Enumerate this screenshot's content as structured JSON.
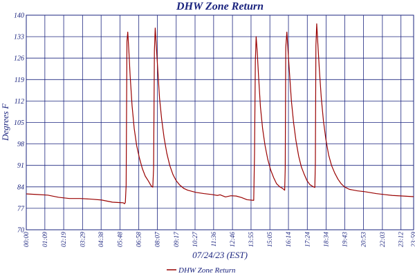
{
  "chart_data": {
    "type": "line",
    "title": "DHW Zone Return",
    "xlabel": "07/24/23 (EST)",
    "ylabel": "Degrees F",
    "ylim": [
      70,
      140
    ],
    "yticks": [
      70,
      77,
      84,
      91,
      98,
      105,
      112,
      119,
      126,
      133,
      140
    ],
    "xlim": [
      0,
      1439
    ],
    "xtick_minutes": [
      0,
      69,
      139,
      209,
      278,
      348,
      418,
      487,
      557,
      627,
      696,
      766,
      835,
      905,
      974,
      1044,
      1114,
      1183,
      1253,
      1323,
      1392,
      1439
    ],
    "xtick_labels": [
      "00:00",
      "01:09",
      "02:19",
      "03:29",
      "04:38",
      "05:48",
      "06:58",
      "08:07",
      "09:17",
      "10:27",
      "11:36",
      "12:46",
      "13:55",
      "15:05",
      "16:14",
      "17:24",
      "18:34",
      "19:43",
      "20:53",
      "22:03",
      "23:12",
      "23:59"
    ],
    "grid": true,
    "legend_position": "bottom-center",
    "series": [
      {
        "name": "DHW Zone Return",
        "color": "#990000",
        "points": [
          [
            0,
            81.7
          ],
          [
            40,
            81.5
          ],
          [
            80,
            81.3
          ],
          [
            120,
            80.6
          ],
          [
            160,
            80.2
          ],
          [
            200,
            80.2
          ],
          [
            240,
            80.0
          ],
          [
            280,
            79.7
          ],
          [
            320,
            79.0
          ],
          [
            360,
            78.8
          ],
          [
            365,
            78.5
          ],
          [
            368,
            78.9
          ],
          [
            371,
            84.5
          ],
          [
            374,
            131.5
          ],
          [
            377,
            134.5
          ],
          [
            381,
            128.5
          ],
          [
            386,
            120.0
          ],
          [
            393,
            110.5
          ],
          [
            401,
            103.0
          ],
          [
            410,
            97.5
          ],
          [
            420,
            93.5
          ],
          [
            431,
            90.0
          ],
          [
            442,
            87.5
          ],
          [
            453,
            86.0
          ],
          [
            464,
            84.3
          ],
          [
            470,
            83.9
          ],
          [
            473,
            90.0
          ],
          [
            476,
            128.5
          ],
          [
            479,
            135.8
          ],
          [
            483,
            130.0
          ],
          [
            488,
            123.0
          ],
          [
            495,
            113.0
          ],
          [
            503,
            106.0
          ],
          [
            512,
            100.0
          ],
          [
            522,
            95.0
          ],
          [
            533,
            91.0
          ],
          [
            545,
            88.0
          ],
          [
            557,
            86.0
          ],
          [
            570,
            84.6
          ],
          [
            585,
            83.5
          ],
          [
            600,
            82.9
          ],
          [
            630,
            82.2
          ],
          [
            660,
            81.8
          ],
          [
            690,
            81.5
          ],
          [
            710,
            81.2
          ],
          [
            720,
            81.4
          ],
          [
            740,
            80.7
          ],
          [
            760,
            81.1
          ],
          [
            780,
            81.0
          ],
          [
            800,
            80.5
          ],
          [
            820,
            79.8
          ],
          [
            845,
            79.6
          ],
          [
            848,
            95.0
          ],
          [
            851,
            125.0
          ],
          [
            854,
            133.0
          ],
          [
            858,
            128.0
          ],
          [
            863,
            120.0
          ],
          [
            870,
            110.0
          ],
          [
            878,
            103.0
          ],
          [
            887,
            97.5
          ],
          [
            897,
            93.0
          ],
          [
            908,
            89.5
          ],
          [
            919,
            87.0
          ],
          [
            930,
            85.0
          ],
          [
            942,
            84.0
          ],
          [
            952,
            83.5
          ],
          [
            960,
            82.9
          ],
          [
            962,
            90.0
          ],
          [
            964,
            129.5
          ],
          [
            968,
            134.5
          ],
          [
            972,
            129.0
          ],
          [
            978,
            121.0
          ],
          [
            985,
            112.0
          ],
          [
            993,
            105.0
          ],
          [
            1002,
            99.0
          ],
          [
            1012,
            94.0
          ],
          [
            1022,
            90.5
          ],
          [
            1033,
            88.0
          ],
          [
            1043,
            86.0
          ],
          [
            1054,
            84.7
          ],
          [
            1065,
            84.1
          ],
          [
            1072,
            83.8
          ],
          [
            1074,
            92.0
          ],
          [
            1076,
            130.0
          ],
          [
            1079,
            137.2
          ],
          [
            1083,
            131.0
          ],
          [
            1089,
            122.0
          ],
          [
            1096,
            113.0
          ],
          [
            1104,
            105.5
          ],
          [
            1113,
            99.5
          ],
          [
            1123,
            94.5
          ],
          [
            1134,
            91.0
          ],
          [
            1146,
            88.5
          ],
          [
            1158,
            86.5
          ],
          [
            1170,
            85.0
          ],
          [
            1182,
            84.0
          ],
          [
            1200,
            83.2
          ],
          [
            1230,
            82.7
          ],
          [
            1260,
            82.4
          ],
          [
            1300,
            81.8
          ],
          [
            1330,
            81.5
          ],
          [
            1360,
            81.2
          ],
          [
            1400,
            81.0
          ],
          [
            1439,
            80.8
          ]
        ]
      }
    ]
  }
}
